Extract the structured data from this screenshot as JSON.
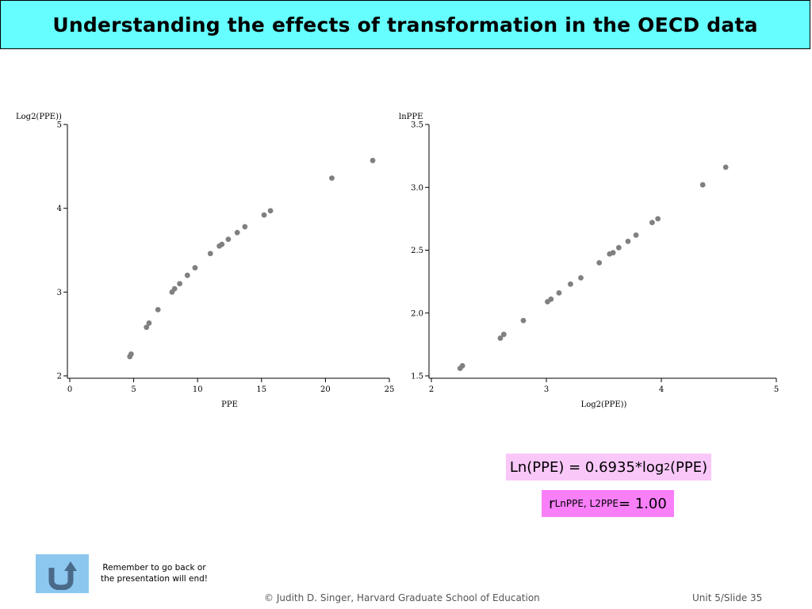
{
  "header": {
    "title": "Understanding the effects of transformation in the OECD data"
  },
  "equation1": {
    "lhs": "Ln(PPE) = 0.6935*log",
    "sub": "2",
    "rhs": "(PPE)"
  },
  "equation2": {
    "r": "r",
    "sub": "LnPPE, L2PPE",
    "rhs": " = 1.00"
  },
  "nav": {
    "reminder_line1": "Remember to go back or",
    "reminder_line2": "the presentation will end!"
  },
  "footer": {
    "copyright": "© Judith D. Singer, Harvard Graduate School of Education",
    "slide": "Unit 5/Slide 35"
  },
  "colors": {
    "title_bg": "#66ffff",
    "marker": "#808080",
    "eq1_bg": "#f9c8f9",
    "eq2_bg": "#f97ff9",
    "button_bg": "#8cc7ef",
    "button_icon": "#4a6a8a"
  },
  "chart_data": [
    {
      "type": "scatter",
      "xlabel": "PPE",
      "ylabel": "Log2(PPE))",
      "xlim": [
        0,
        25
      ],
      "ylim": [
        2,
        5
      ],
      "xticks": [
        "0",
        "5",
        "10",
        "15",
        "20",
        "25"
      ],
      "xtick_values": [
        0,
        5,
        10,
        15,
        20,
        25
      ],
      "yticks": [
        "2",
        "3",
        "4",
        "5"
      ],
      "ytick_values": [
        2,
        3,
        4,
        5
      ],
      "grid": false,
      "x": [
        4.7,
        4.8,
        6.0,
        6.2,
        6.9,
        8.0,
        8.2,
        8.6,
        9.2,
        9.8,
        11.0,
        11.7,
        11.9,
        12.4,
        13.1,
        13.7,
        15.2,
        15.7,
        20.5,
        23.7
      ],
      "y": [
        2.23,
        2.26,
        2.58,
        2.63,
        2.79,
        3.0,
        3.04,
        3.1,
        3.2,
        3.29,
        3.46,
        3.55,
        3.57,
        3.63,
        3.71,
        3.78,
        3.92,
        3.97,
        4.36,
        4.57
      ]
    },
    {
      "type": "scatter",
      "xlabel": "Log2(PPE))",
      "ylabel": "lnPPE",
      "xlim": [
        2,
        5
      ],
      "ylim": [
        1.5,
        3.5
      ],
      "xticks": [
        "2",
        "3",
        "4",
        "5"
      ],
      "xtick_values": [
        2,
        3,
        4,
        5
      ],
      "yticks": [
        "1.5",
        "2.0",
        "2.5",
        "3.0",
        "3.5"
      ],
      "ytick_values": [
        1.5,
        2.0,
        2.5,
        3.0,
        3.5
      ],
      "grid": false,
      "x": [
        2.25,
        2.27,
        2.6,
        2.63,
        2.8,
        3.01,
        3.04,
        3.11,
        3.21,
        3.3,
        3.46,
        3.55,
        3.58,
        3.63,
        3.71,
        3.78,
        3.92,
        3.97,
        4.36,
        4.56
      ],
      "y": [
        1.56,
        1.58,
        1.8,
        1.83,
        1.94,
        2.09,
        2.11,
        2.16,
        2.23,
        2.28,
        2.4,
        2.47,
        2.48,
        2.52,
        2.57,
        2.62,
        2.72,
        2.75,
        3.02,
        3.16
      ]
    }
  ]
}
